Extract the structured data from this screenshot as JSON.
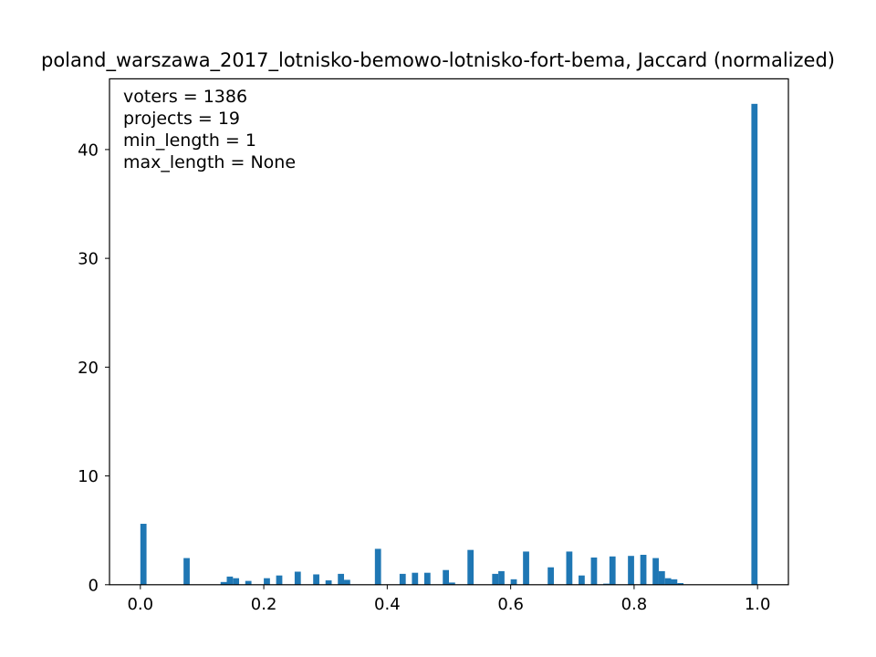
{
  "chart_data": {
    "type": "bar",
    "title": "poland_warszawa_2017_lotnisko-bemowo-lotnisko-fort-bema, Jaccard (normalized)",
    "xlabel": "",
    "ylabel": "",
    "xlim": [
      -0.05,
      1.05
    ],
    "ylim": [
      0,
      46.5
    ],
    "xticks": [
      0.0,
      0.2,
      0.4,
      0.6,
      0.8,
      1.0
    ],
    "xtick_labels": [
      "0.0",
      "0.2",
      "0.4",
      "0.6",
      "0.8",
      "1.0"
    ],
    "yticks": [
      0,
      10,
      20,
      30,
      40
    ],
    "ytick_labels": [
      "0",
      "10",
      "20",
      "30",
      "40"
    ],
    "grid": false,
    "color": "#1f77b4",
    "bin_width": 0.01,
    "annotations": [
      "voters = 1386",
      "projects = 19",
      "min_length = 1",
      "max_length = None"
    ],
    "bars": [
      {
        "x": 0.0,
        "value": 5.6
      },
      {
        "x": 0.07,
        "value": 2.45
      },
      {
        "x": 0.13,
        "value": 0.25
      },
      {
        "x": 0.14,
        "value": 0.75
      },
      {
        "x": 0.15,
        "value": 0.6
      },
      {
        "x": 0.17,
        "value": 0.35
      },
      {
        "x": 0.2,
        "value": 0.6
      },
      {
        "x": 0.22,
        "value": 0.85
      },
      {
        "x": 0.25,
        "value": 1.2
      },
      {
        "x": 0.28,
        "value": 0.95
      },
      {
        "x": 0.3,
        "value": 0.4
      },
      {
        "x": 0.32,
        "value": 1.0
      },
      {
        "x": 0.33,
        "value": 0.45
      },
      {
        "x": 0.38,
        "value": 3.3
      },
      {
        "x": 0.42,
        "value": 1.0
      },
      {
        "x": 0.44,
        "value": 1.1
      },
      {
        "x": 0.46,
        "value": 1.1
      },
      {
        "x": 0.49,
        "value": 1.35
      },
      {
        "x": 0.5,
        "value": 0.2
      },
      {
        "x": 0.53,
        "value": 3.2
      },
      {
        "x": 0.57,
        "value": 1.0
      },
      {
        "x": 0.58,
        "value": 1.25
      },
      {
        "x": 0.6,
        "value": 0.5
      },
      {
        "x": 0.62,
        "value": 3.05
      },
      {
        "x": 0.66,
        "value": 1.6
      },
      {
        "x": 0.69,
        "value": 3.05
      },
      {
        "x": 0.71,
        "value": 0.85
      },
      {
        "x": 0.73,
        "value": 2.5
      },
      {
        "x": 0.75,
        "value": 0.1
      },
      {
        "x": 0.76,
        "value": 2.6
      },
      {
        "x": 0.79,
        "value": 2.65
      },
      {
        "x": 0.81,
        "value": 2.75
      },
      {
        "x": 0.83,
        "value": 2.45
      },
      {
        "x": 0.84,
        "value": 1.25
      },
      {
        "x": 0.85,
        "value": 0.6
      },
      {
        "x": 0.86,
        "value": 0.5
      },
      {
        "x": 0.87,
        "value": 0.15
      },
      {
        "x": 0.99,
        "value": 44.2
      }
    ]
  }
}
